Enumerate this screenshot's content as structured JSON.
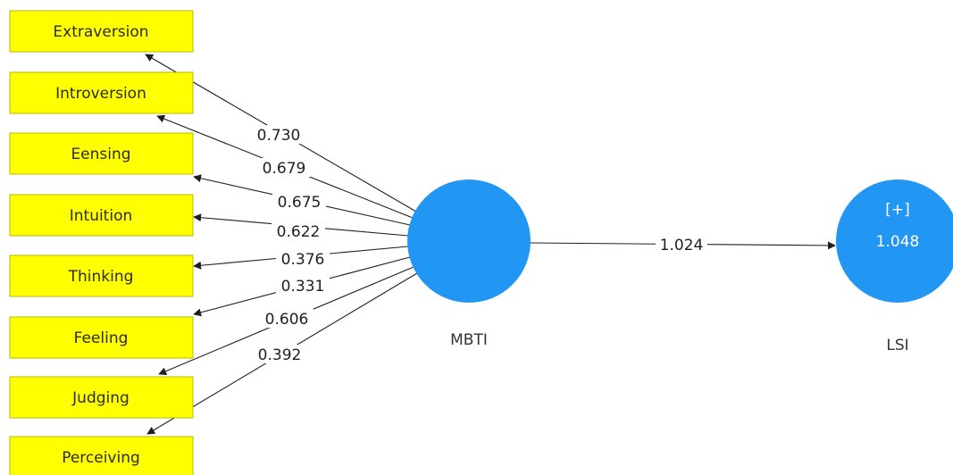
{
  "constructs": {
    "mbti": {
      "name": "MBTI",
      "color": "#2196f3"
    },
    "lsi": {
      "name": "LSI",
      "expand_label": "[+]",
      "r_squared": "1.048",
      "color": "#2196f3"
    }
  },
  "indicators": [
    {
      "key": "extraversion",
      "label": "Extraversion",
      "loading": "0.730"
    },
    {
      "key": "introversion",
      "label": "Introversion",
      "loading": "0.679"
    },
    {
      "key": "eensing",
      "label": "Eensing",
      "loading": "0.675"
    },
    {
      "key": "intuition",
      "label": "Intuition",
      "loading": "0.622"
    },
    {
      "key": "thinking",
      "label": "Thinking",
      "loading": "0.376"
    },
    {
      "key": "feeling",
      "label": "Feeling",
      "loading": "0.331"
    },
    {
      "key": "judging",
      "label": "Judging",
      "loading": "0.606"
    },
    {
      "key": "perceiving",
      "label": "Perceiving",
      "loading": "0.392"
    }
  ],
  "path": {
    "from": "MBTI",
    "to": "LSI",
    "coefficient": "1.024"
  },
  "colors": {
    "indicator_fill": "#ffff00",
    "construct_fill": "#2196f3",
    "edge": "#1f1f1f"
  }
}
